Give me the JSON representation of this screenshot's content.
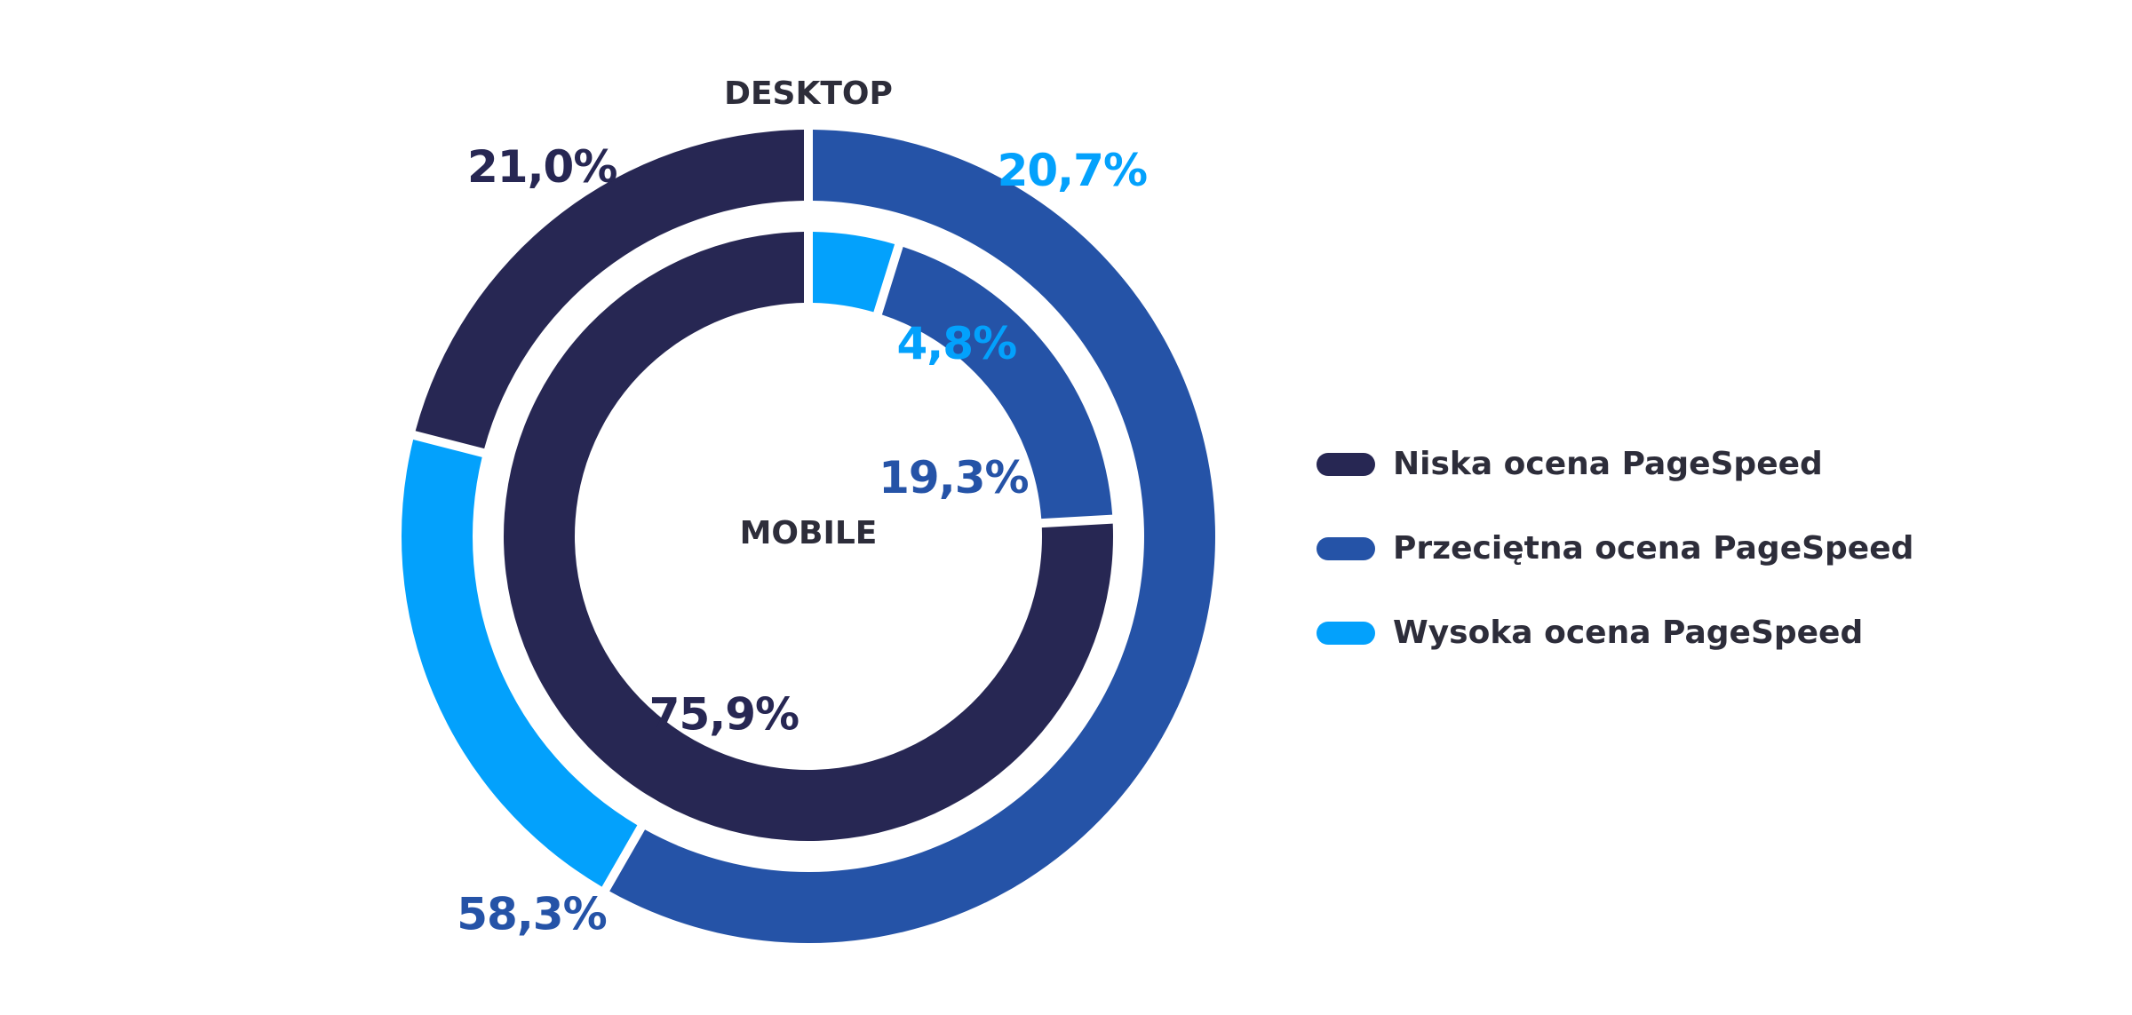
{
  "chart_data": {
    "type": "pie",
    "subtype": "nested-donut",
    "categories": [
      "Niska ocena PageSpeed",
      "Przeciętna ocena PageSpeed",
      "Wysoka ocena PageSpeed"
    ],
    "colors": [
      "#272753",
      "#2553a7",
      "#03a1fc"
    ],
    "series": [
      {
        "name": "DESKTOP",
        "ring": "outer",
        "values": [
          21.0,
          58.3,
          20.7
        ],
        "labels": [
          "21,0%",
          "58,3%",
          "20,7%"
        ]
      },
      {
        "name": "MOBILE",
        "ring": "inner",
        "values": [
          75.9,
          19.3,
          4.8
        ],
        "labels": [
          "75,9%",
          "19,3%",
          "4,8%"
        ]
      }
    ],
    "legend": {
      "position": "right",
      "items": [
        {
          "label": "Niska ocena PageSpeed",
          "color": "#272753"
        },
        {
          "label": "Przeciętna ocena PageSpeed",
          "color": "#2553a7"
        },
        {
          "label": "Wysoka ocena PageSpeed",
          "color": "#03a1fc"
        }
      ]
    }
  }
}
